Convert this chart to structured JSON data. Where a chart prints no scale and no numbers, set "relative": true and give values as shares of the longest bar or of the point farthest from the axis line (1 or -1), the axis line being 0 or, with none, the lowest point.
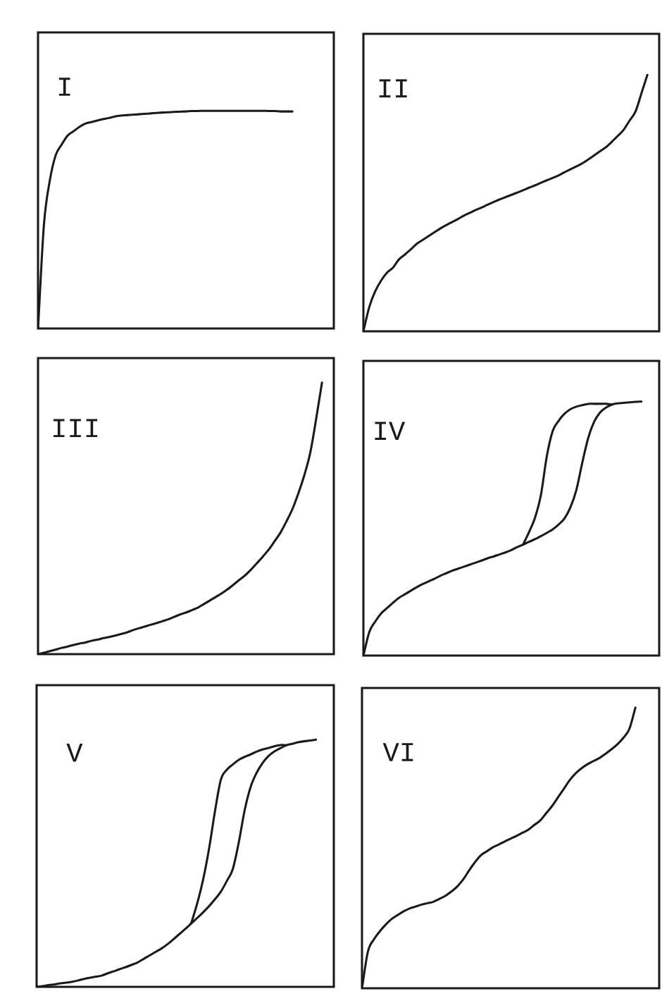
{
  "chart_data": [
    {
      "type": "line",
      "title": "I",
      "relative": true,
      "categories": [
        null,
        null,
        null,
        null,
        null,
        null,
        null,
        null,
        null,
        null,
        null,
        null,
        null,
        null,
        null,
        null,
        null,
        null,
        null,
        null,
        null,
        null,
        null,
        null,
        null,
        null,
        null,
        null,
        null,
        null,
        null,
        null,
        null,
        null,
        null,
        null,
        null,
        null,
        null,
        null,
        null,
        null,
        null,
        null
      ],
      "series": [
        {
          "color": "#1a1a1a",
          "values": [
            0,
            0.477,
            0.681,
            0.797,
            0.845,
            0.886,
            0.906,
            0.926,
            0.941,
            0.948,
            0.955,
            0.962,
            0.967,
            0.974,
            0.978,
            0.98,
            0.982,
            0.984,
            0.986,
            0.988,
            0.99,
            0.992,
            0.993,
            0.995,
            0.996,
            0.997,
            0.999,
            0.999,
            1,
            1,
            1,
            1,
            1,
            1,
            1,
            1,
            1,
            1,
            1,
            0.999,
            0.999,
            0.997,
            0.997,
            0.997
          ]
        }
      ]
    },
    {
      "type": "line",
      "title": "II",
      "relative": true,
      "categories": [
        null,
        null,
        null,
        null,
        null,
        null,
        null,
        null,
        null,
        null,
        null,
        null,
        null,
        null,
        null,
        null,
        null,
        null,
        null,
        null,
        null,
        null,
        null,
        null,
        null,
        null,
        null,
        null,
        null,
        null,
        null,
        null,
        null,
        null,
        null,
        null,
        null,
        null,
        null,
        null,
        null,
        null,
        null,
        null,
        null,
        null,
        null,
        null,
        null
      ],
      "series": [
        {
          "color": "#1a1a1a",
          "values": [
            0,
            0.095,
            0.156,
            0.198,
            0.229,
            0.248,
            0.28,
            0.299,
            0.319,
            0.341,
            0.356,
            0.371,
            0.386,
            0.401,
            0.414,
            0.426,
            0.438,
            0.451,
            0.462,
            0.473,
            0.483,
            0.494,
            0.504,
            0.514,
            0.523,
            0.532,
            0.541,
            0.55,
            0.56,
            0.569,
            0.579,
            0.589,
            0.598,
            0.608,
            0.62,
            0.632,
            0.643,
            0.655,
            0.67,
            0.686,
            0.702,
            0.718,
            0.739,
            0.762,
            0.786,
            0.822,
            0.857,
            0.928,
            1
          ]
        }
      ]
    },
    {
      "type": "line",
      "title": "III",
      "relative": true,
      "categories": [
        null,
        null,
        null,
        null,
        null,
        null,
        null,
        null,
        null,
        null,
        null,
        null,
        null,
        null,
        null,
        null,
        null,
        null,
        null,
        null,
        null,
        null,
        null,
        null,
        null,
        null,
        null,
        null,
        null,
        null,
        null,
        null,
        null,
        null,
        null,
        null,
        null,
        null,
        null,
        null,
        null,
        null,
        null,
        null,
        null,
        null,
        null,
        null,
        null
      ],
      "series": [
        {
          "color": "#1a1a1a",
          "values": [
            0,
            0.005,
            0.011,
            0.017,
            0.023,
            0.028,
            0.034,
            0.039,
            0.043,
            0.049,
            0.053,
            0.059,
            0.063,
            0.068,
            0.074,
            0.08,
            0.088,
            0.095,
            0.101,
            0.108,
            0.114,
            0.121,
            0.128,
            0.137,
            0.146,
            0.153,
            0.162,
            0.171,
            0.184,
            0.197,
            0.21,
            0.223,
            0.238,
            0.255,
            0.273,
            0.29,
            0.311,
            0.335,
            0.359,
            0.385,
            0.416,
            0.448,
            0.489,
            0.534,
            0.592,
            0.658,
            0.74,
            0.864,
            1
          ]
        }
      ]
    },
    {
      "type": "line",
      "title": "IV",
      "relative": true,
      "categories": [
        null,
        null,
        null,
        null,
        null,
        null,
        null,
        null,
        null,
        null,
        null,
        null,
        null,
        null,
        null,
        null,
        null,
        null,
        null,
        null,
        null,
        null,
        null,
        null,
        null,
        null,
        null,
        null,
        null,
        null,
        null,
        null,
        null,
        null,
        null,
        null,
        null,
        null,
        null,
        null,
        null,
        null,
        null,
        null,
        null,
        null,
        null,
        null
      ],
      "series": [
        {
          "color": "#1a1a1a",
          "values": [
            0,
            0.093,
            0.134,
            0.166,
            0.187,
            0.208,
            0.227,
            0.241,
            0.255,
            0.269,
            0.281,
            0.292,
            0.302,
            0.314,
            0.324,
            0.334,
            0.342,
            0.35,
            0.358,
            0.366,
            0.374,
            0.383,
            0.39,
            0.398,
            0.406,
            0.415,
            0.427,
            0.437,
            0.448,
            0.458,
            0.47,
            0.483,
            0.497,
            0.516,
            0.54,
            0.584,
            0.652,
            0.759,
            0.856,
            0.92,
            0.957,
            0.976,
            0.988,
            0.993,
            0.995,
            0.997,
            0.999,
            1
          ]
        },
        {
          "color": "#1a1a1a",
          "values": [
            null,
            null,
            null,
            null,
            null,
            null,
            null,
            null,
            null,
            null,
            null,
            null,
            null,
            null,
            null,
            null,
            null,
            null,
            null,
            null,
            null,
            null,
            null,
            null,
            null,
            null,
            null,
            0.437,
            0.486,
            0.542,
            0.631,
            0.784,
            0.884,
            0.924,
            0.952,
            0.97,
            0.98,
            0.986,
            0.991,
            0.991,
            0.991,
            0.991,
            0.988,
            null,
            null,
            null,
            null,
            null
          ]
        }
      ]
    },
    {
      "type": "line",
      "title": "V",
      "relative": true,
      "categories": [
        null,
        null,
        null,
        null,
        null,
        null,
        null,
        null,
        null,
        null,
        null,
        null,
        null,
        null,
        null,
        null,
        null,
        null,
        null,
        null,
        null,
        null,
        null,
        null,
        null,
        null,
        null,
        null,
        null,
        null,
        null,
        null,
        null,
        null,
        null,
        null,
        null,
        null,
        null,
        null,
        null,
        null,
        null,
        null,
        null,
        null,
        null,
        null
      ],
      "series": [
        {
          "color": "#1a1a1a",
          "values": [
            0,
            0.003,
            0.007,
            0.01,
            0.014,
            0.017,
            0.021,
            0.026,
            0.032,
            0.037,
            0.041,
            0.046,
            0.055,
            0.063,
            0.072,
            0.08,
            0.089,
            0.099,
            0.113,
            0.127,
            0.141,
            0.155,
            0.172,
            0.192,
            0.213,
            0.234,
            0.256,
            0.278,
            0.301,
            0.326,
            0.354,
            0.385,
            0.428,
            0.476,
            0.583,
            0.714,
            0.808,
            0.865,
            0.905,
            0.933,
            0.952,
            0.965,
            0.977,
            0.983,
            0.989,
            0.993,
            0.996,
            1
          ]
        },
        {
          "color": "#1a1a1a",
          "values": [
            null,
            null,
            null,
            null,
            null,
            null,
            null,
            null,
            null,
            null,
            null,
            null,
            null,
            null,
            null,
            null,
            null,
            null,
            null,
            null,
            null,
            null,
            null,
            null,
            null,
            null,
            0.256,
            0.336,
            0.432,
            0.557,
            0.709,
            0.838,
            0.878,
            0.899,
            0.918,
            0.93,
            0.94,
            0.951,
            0.96,
            0.966,
            0.973,
            0.978,
            0.977,
            null,
            null,
            null,
            null,
            null
          ]
        }
      ]
    },
    {
      "type": "line",
      "title": "VI",
      "relative": true,
      "categories": [
        null,
        null,
        null,
        null,
        null,
        null,
        null,
        null,
        null,
        null,
        null,
        null,
        null,
        null,
        null,
        null,
        null,
        null,
        null,
        null,
        null,
        null,
        null,
        null,
        null,
        null,
        null,
        null,
        null,
        null,
        null,
        null,
        null,
        null,
        null,
        null,
        null,
        null,
        null,
        null,
        null,
        null,
        null,
        null,
        null,
        null,
        null
      ],
      "series": [
        {
          "color": "#1a1a1a",
          "values": [
            0,
            0.131,
            0.174,
            0.203,
            0.227,
            0.247,
            0.261,
            0.274,
            0.284,
            0.291,
            0.298,
            0.303,
            0.308,
            0.318,
            0.329,
            0.344,
            0.362,
            0.387,
            0.419,
            0.449,
            0.474,
            0.488,
            0.502,
            0.512,
            0.523,
            0.533,
            0.543,
            0.554,
            0.565,
            0.582,
            0.598,
            0.624,
            0.65,
            0.681,
            0.712,
            0.743,
            0.767,
            0.785,
            0.799,
            0.81,
            0.821,
            0.836,
            0.852,
            0.87,
            0.893,
            0.925,
            1
          ]
        }
      ]
    }
  ]
}
